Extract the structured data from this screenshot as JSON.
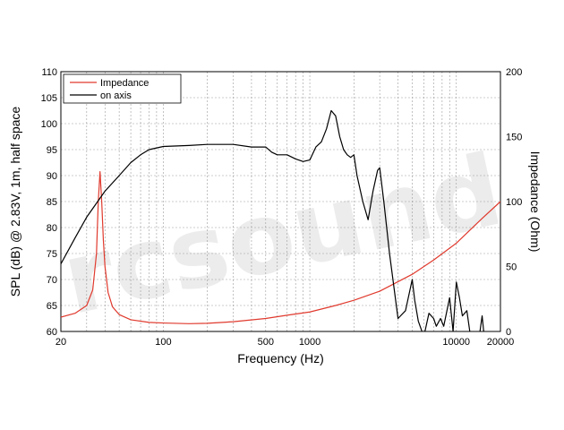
{
  "chart_data": {
    "type": "line",
    "xlabel": "Frequency (Hz)",
    "ylabel": "SPL (dB) @ 2.83V, 1m, half space",
    "y2label": "Impedance (Ohm)",
    "x_scale": "log",
    "xlim": [
      20,
      20000
    ],
    "ylim": [
      60,
      110
    ],
    "y2lim": [
      0,
      200
    ],
    "x_ticks": [
      20,
      100,
      500,
      1000,
      10000,
      20000
    ],
    "x_tick_labels": [
      "20",
      "100",
      "500",
      "1000",
      "10000",
      "20000"
    ],
    "y_ticks": [
      60,
      65,
      70,
      75,
      80,
      85,
      90,
      95,
      100,
      105,
      110
    ],
    "y2_ticks": [
      0,
      50,
      100,
      150,
      200
    ],
    "grid": true,
    "legend_position": "top-left",
    "watermark_text": "rcsound",
    "series": [
      {
        "name": "Impedance",
        "axis": "right",
        "color": "#e03a2e",
        "x": [
          20,
          25,
          30,
          33,
          35,
          36,
          37,
          38,
          39,
          40,
          42,
          45,
          50,
          60,
          80,
          100,
          150,
          200,
          300,
          500,
          700,
          1000,
          1500,
          2000,
          3000,
          5000,
          7000,
          10000,
          15000,
          20000
        ],
        "y": [
          11,
          14,
          20,
          32,
          60,
          100,
          123,
          100,
          70,
          50,
          30,
          19,
          13,
          9,
          7,
          6.5,
          6,
          6.3,
          7.5,
          10,
          12.5,
          15,
          20,
          24,
          31,
          44,
          55,
          68,
          87,
          100
        ]
      },
      {
        "name": "on axis",
        "axis": "left",
        "color": "#000000",
        "x": [
          20,
          25,
          30,
          40,
          50,
          60,
          70,
          80,
          100,
          150,
          200,
          300,
          400,
          500,
          550,
          600,
          700,
          800,
          900,
          1000,
          1100,
          1200,
          1300,
          1400,
          1500,
          1600,
          1700,
          1800,
          1900,
          2000,
          2100,
          2300,
          2500,
          2700,
          2900,
          3000,
          3200,
          3500,
          4000,
          4500,
          5000,
          5200,
          5500,
          6000,
          6500,
          7000,
          7300,
          7800,
          8200,
          9000,
          9500,
          10000,
          10500,
          11000,
          11800,
          12500,
          14500,
          15000,
          15500
        ],
        "y": [
          73,
          78,
          82,
          87,
          90,
          92.5,
          94,
          95,
          95.6,
          95.8,
          96,
          96,
          95.5,
          95.5,
          94.5,
          94,
          94,
          93.2,
          92.7,
          93,
          95.5,
          96.5,
          99,
          102.5,
          101.5,
          97.5,
          95,
          94,
          93.5,
          94,
          90,
          85,
          81.5,
          87,
          91,
          91.5,
          85,
          75,
          62.5,
          64,
          70,
          66,
          62,
          59,
          63.5,
          62.5,
          61,
          62.5,
          61,
          66.5,
          60,
          69.5,
          66.5,
          63,
          64,
          59,
          60,
          63,
          59
        ]
      }
    ]
  }
}
